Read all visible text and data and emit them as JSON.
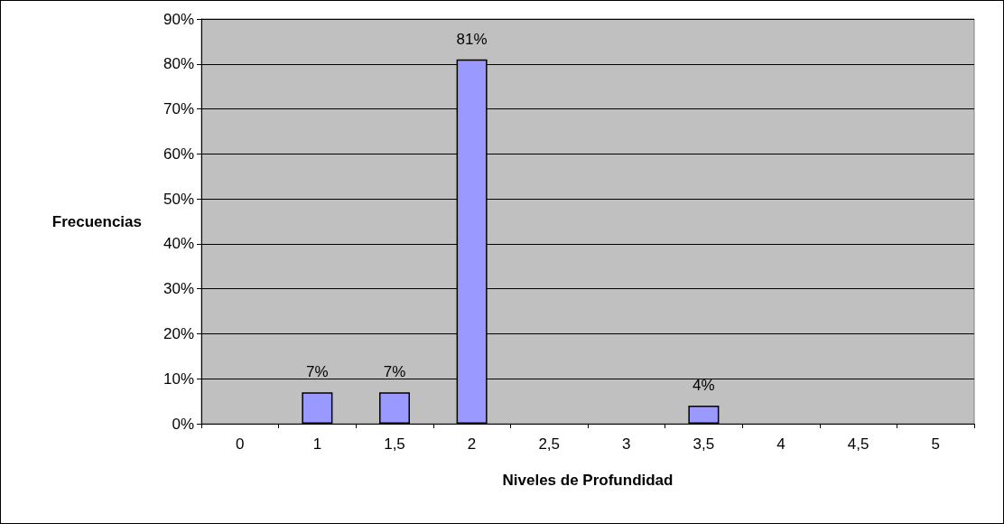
{
  "chart_data": {
    "type": "bar",
    "xlabel": "Niveles de Profundidad",
    "ylabel": "Frecuencias",
    "categories": [
      "0",
      "1",
      "1,5",
      "2",
      "2,5",
      "3",
      "3,5",
      "4",
      "4,5",
      "5"
    ],
    "values": [
      0,
      7,
      7,
      81,
      0,
      0,
      4,
      0,
      0,
      0
    ],
    "value_labels": [
      null,
      "7%",
      "7%",
      "81%",
      null,
      null,
      "4%",
      null,
      null,
      null
    ],
    "color": "#9999ff",
    "ylim": [
      0,
      90
    ],
    "yticks": [
      {
        "value": 0,
        "label": "0%"
      },
      {
        "value": 10,
        "label": "10%"
      },
      {
        "value": 20,
        "label": "20%"
      },
      {
        "value": 30,
        "label": "30%"
      },
      {
        "value": 40,
        "label": "40%"
      },
      {
        "value": 50,
        "label": "50%"
      },
      {
        "value": 60,
        "label": "60%"
      },
      {
        "value": 70,
        "label": "70%"
      },
      {
        "value": 80,
        "label": "80%"
      },
      {
        "value": 90,
        "label": "90%"
      }
    ],
    "grid": "y"
  }
}
